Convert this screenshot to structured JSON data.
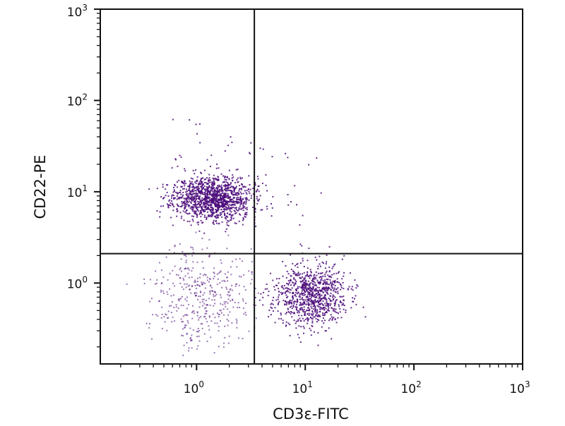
{
  "chart_data": {
    "type": "scatter",
    "title": "",
    "xlabel": "CD3ε-FITC",
    "ylabel": "CD22-PE",
    "x_scale": "log",
    "y_scale": "log",
    "xlim": [
      0.13,
      1000
    ],
    "ylim": [
      0.13,
      1000
    ],
    "x_ticks": [
      {
        "value": 1,
        "label_base": "10",
        "label_exp": "0"
      },
      {
        "value": 10,
        "label_base": "10",
        "label_exp": "1"
      },
      {
        "value": 100,
        "label_base": "10",
        "label_exp": "2"
      },
      {
        "value": 1000,
        "label_base": "10",
        "label_exp": "3"
      }
    ],
    "y_ticks": [
      {
        "value": 1,
        "label_base": "10",
        "label_exp": "0"
      },
      {
        "value": 10,
        "label_base": "10",
        "label_exp": "1"
      },
      {
        "value": 100,
        "label_base": "10",
        "label_exp": "2"
      },
      {
        "value": 1000,
        "label_base": "10",
        "label_exp": "3"
      }
    ],
    "quadrant_gates": {
      "x": 3.4,
      "y": 2.1
    },
    "grid": false,
    "point_color": "#4b0a7a",
    "populations": [
      {
        "center": [
          1.4,
          8.5
        ],
        "spread": [
          0.18,
          0.12
        ],
        "count": 1300,
        "seed": 11
      },
      {
        "center": [
          11.0,
          0.72
        ],
        "spread": [
          0.17,
          0.17
        ],
        "count": 900,
        "seed": 23
      },
      {
        "center": [
          1.1,
          0.75
        ],
        "spread": [
          0.22,
          0.28
        ],
        "count": 420,
        "seed": 37
      },
      {
        "center": [
          1.8,
          14.0
        ],
        "spread": [
          0.45,
          0.35
        ],
        "count": 60,
        "seed": 51
      }
    ]
  }
}
